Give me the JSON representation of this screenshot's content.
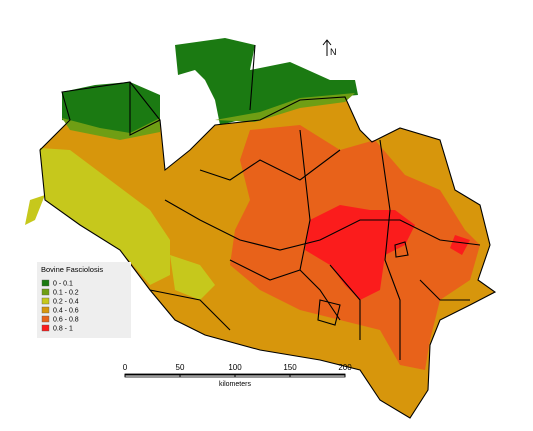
{
  "legend": {
    "title": "Bovine Fasciolosis",
    "items": [
      {
        "label": "0 - 0.1",
        "color": "#1b7a12"
      },
      {
        "label": "0.1 - 0.2",
        "color": "#6f9e14"
      },
      {
        "label": "0.2 - 0.4",
        "color": "#c6c81c"
      },
      {
        "label": "0.4 - 0.6",
        "color": "#d7960c"
      },
      {
        "label": "0.6 - 0.8",
        "color": "#e8621a"
      },
      {
        "label": "0.8 - 1",
        "color": "#fb1c1c"
      }
    ]
  },
  "scale_bar": {
    "ticks": [
      0,
      50,
      100,
      150,
      200
    ],
    "unit": "kilometers"
  },
  "north_arrow": "N"
}
